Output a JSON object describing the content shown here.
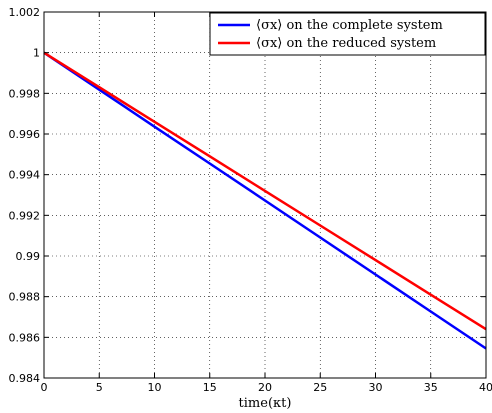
{
  "chart_data": {
    "type": "line",
    "title": "",
    "xlabel": "time(κt)",
    "ylabel": "",
    "xlim": [
      0,
      40
    ],
    "ylim": [
      0.984,
      1.002
    ],
    "x_ticks": [
      0,
      5,
      10,
      15,
      20,
      25,
      30,
      35,
      40
    ],
    "x_tick_labels": [
      "0",
      "5",
      "10",
      "15",
      "20",
      "25",
      "30",
      "35",
      "40"
    ],
    "y_ticks": [
      0.984,
      0.986,
      0.988,
      0.99,
      0.992,
      0.994,
      0.996,
      0.998,
      1,
      1.002
    ],
    "y_tick_labels": [
      "0.984",
      "0.986",
      "0.988",
      "0.99",
      "0.992",
      "0.994",
      "0.996",
      "0.998",
      "1",
      "1.002"
    ],
    "grid": true,
    "grid_style": "dotted",
    "legend_position": "top-right",
    "series": [
      {
        "name": "⟨σx⟩ on the complete system",
        "color": "#0000ff",
        "x": [
          0,
          5,
          10,
          15,
          20,
          25,
          30,
          35,
          40
        ],
        "values": [
          1.0,
          0.99818,
          0.99636,
          0.99455,
          0.99273,
          0.99091,
          0.98909,
          0.98727,
          0.98545
        ]
      },
      {
        "name": "⟨σx⟩ on the reduced system",
        "color": "#ff0000",
        "x": [
          0,
          5,
          10,
          15,
          20,
          25,
          30,
          35,
          40
        ],
        "values": [
          1.0,
          0.9983,
          0.9966,
          0.9949,
          0.9932,
          0.9915,
          0.9898,
          0.9881,
          0.9864
        ]
      }
    ]
  }
}
